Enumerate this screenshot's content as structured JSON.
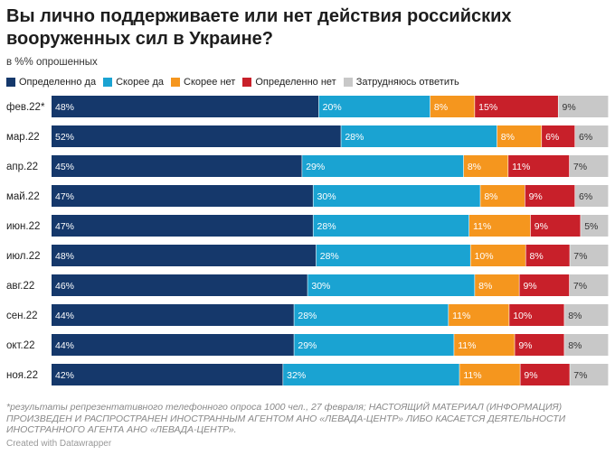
{
  "title": "Вы лично поддерживаете или нет действия российских вооруженных сил в Украине?",
  "subtitle": "в %% опрошенных",
  "footnote": "*результаты репрезентативного телефонного опроса 1000 чел., 27 февраля; НАСТОЯЩИЙ МАТЕРИАЛ (ИНФОРМАЦИЯ) ПРОИЗВЕДЕН И РАСПРОСТРАНЕН ИНОСТРАННЫМ АГЕНТОМ АНО «ЛЕВАДА-ЦЕНТР» ЛИБО КАСАЕТСЯ ДЕЯТЕЛЬНОСТИ ИНОСТРАННОГО АГЕНТА АНО «ЛЕВАДА-ЦЕНТР».",
  "credit": "Created with Datawrapper",
  "chart_data": {
    "type": "bar",
    "orientation": "horizontal",
    "stacked": true,
    "title": "Вы лично поддерживаете или нет действия российских вооруженных сил в Украине?",
    "subtitle": "в %% опрошенных",
    "value_suffix": "%",
    "legend_position": "top",
    "grid": false,
    "xlim": [
      0,
      100
    ],
    "categories": [
      "фев.22*",
      "мар.22",
      "апр.22",
      "май.22",
      "июн.22",
      "июл.22",
      "авг.22",
      "сен.22",
      "окт.22",
      "ноя.22"
    ],
    "series": [
      {
        "name": "Определенно да",
        "color": "#15386b",
        "label_color": "#ffffff",
        "values": [
          48,
          52,
          45,
          47,
          47,
          48,
          46,
          44,
          44,
          42
        ]
      },
      {
        "name": "Скорее да",
        "color": "#1aa3d2",
        "label_color": "#ffffff",
        "values": [
          20,
          28,
          29,
          30,
          28,
          28,
          30,
          28,
          29,
          32
        ]
      },
      {
        "name": "Скорее нет",
        "color": "#f5961e",
        "label_color": "#ffffff",
        "values": [
          8,
          8,
          8,
          8,
          11,
          10,
          8,
          11,
          11,
          11
        ]
      },
      {
        "name": "Определенно нет",
        "color": "#c8202a",
        "label_color": "#ffffff",
        "values": [
          15,
          6,
          11,
          9,
          9,
          8,
          9,
          10,
          9,
          9
        ]
      },
      {
        "name": "Затрудняюсь ответить",
        "color": "#c8c8c8",
        "label_color": "#333333",
        "values": [
          9,
          6,
          7,
          6,
          5,
          7,
          7,
          8,
          8,
          7
        ]
      }
    ]
  }
}
